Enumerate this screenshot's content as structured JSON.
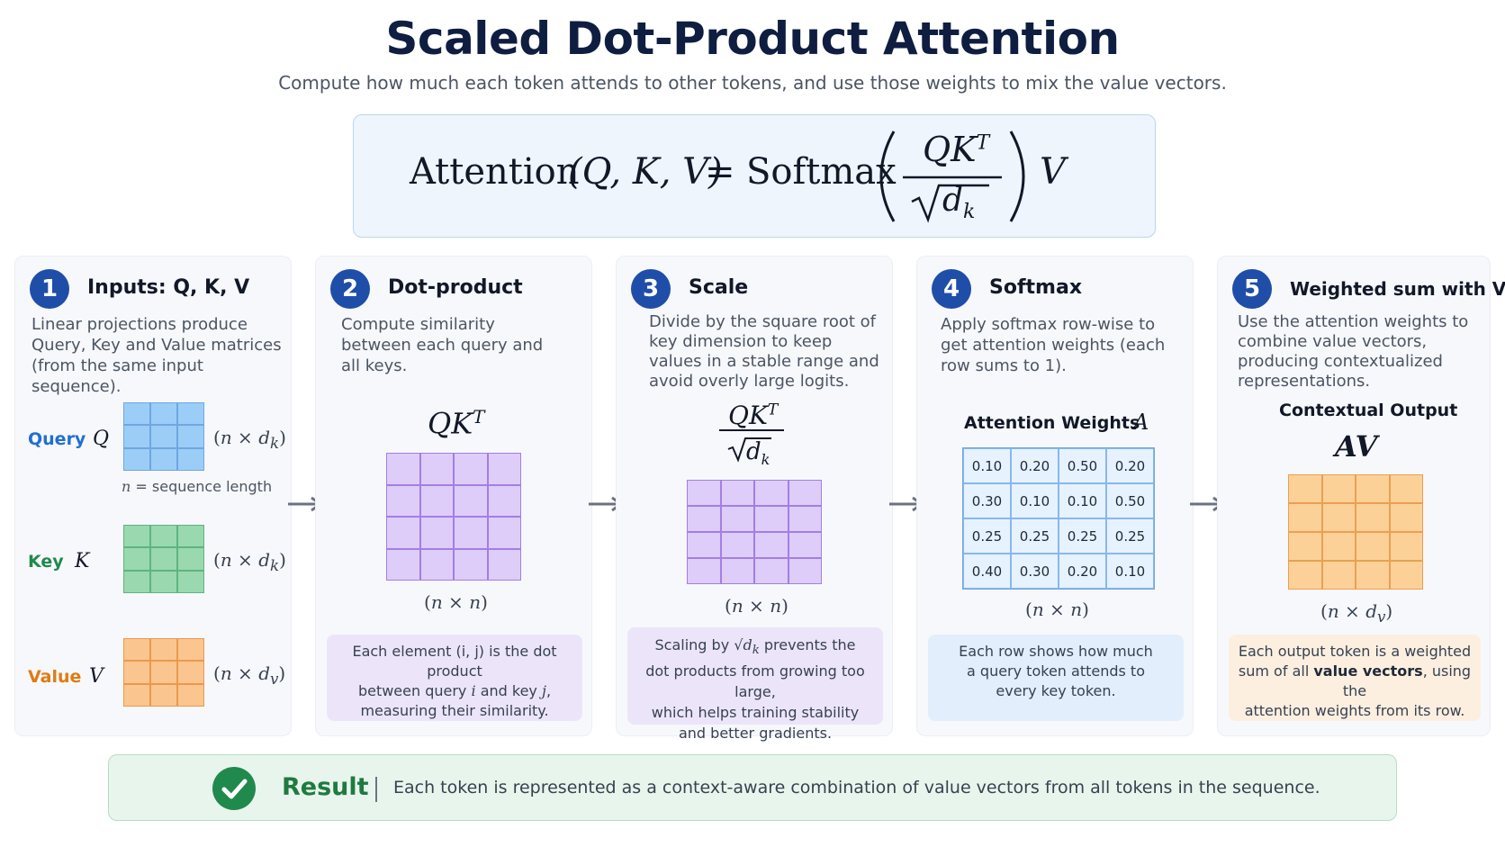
{
  "header": {
    "title": "Scaled Dot-Product Attention",
    "subtitle": "Compute how much each token attends to other tokens, and use those weights to mix the value vectors."
  },
  "formula": {
    "lhs": "Attention",
    "args": "(Q, K, V)",
    "equals": "=",
    "softmax": "Softmax",
    "numerator": "QK",
    "numerator_sup": "T",
    "denominator": "d",
    "denominator_sub": "k",
    "trailing": "V"
  },
  "steps": [
    {
      "number": "1",
      "title": "Inputs: Q,  K,  V",
      "description": "Linear projections produce Query, Key and Value matrices (from the same input sequence).",
      "matrices": [
        {
          "label": "Query",
          "symbol": "Q",
          "dim": "(n × d",
          "dim_sub": "k",
          "dim_end": ")",
          "color": "#1f6fd1"
        },
        {
          "label": "Key",
          "symbol": "K",
          "dim": "(n × d",
          "dim_sub": "k",
          "dim_end": ")",
          "color": "#1f8a4c"
        },
        {
          "label": "Value",
          "symbol": "V",
          "dim": "(n × d",
          "dim_sub": "v",
          "dim_end": ")",
          "color": "#e07b12"
        }
      ],
      "note_var": "n",
      "note": " = sequence length"
    },
    {
      "number": "2",
      "title": "Dot-product",
      "description": "Compute similarity between each query and all keys.",
      "math": "QK",
      "math_sup": "T",
      "dim": "(n × n)",
      "footnote_1": "Each element (i, j) is the dot product",
      "footnote_2a": "between query ",
      "footnote_var_i": "i",
      "footnote_2b": " and key ",
      "footnote_var_j": "j",
      "footnote_2c": ",",
      "footnote_3": "measuring their similarity."
    },
    {
      "number": "3",
      "title": "Scale",
      "description": "Divide by the square root of key dimension to keep values in a stable range and avoid overly large logits.",
      "math_num": "QK",
      "math_sup": "T",
      "math_den": "d",
      "math_den_sub": "k",
      "dim": "(n × n)",
      "footnote_1a": "Scaling by ",
      "footnote_1b": " prevents the",
      "footnote_2": "dot products from growing too large,",
      "footnote_3": "which helps training stability",
      "footnote_4": "and better gradients."
    },
    {
      "number": "4",
      "title": "Softmax",
      "description": "Apply softmax row-wise to get attention weights (each row sums to 1).",
      "table_title": "Attention Weights",
      "table_symbol": "A",
      "weights": [
        [
          "0.10",
          "0.20",
          "0.50",
          "0.20"
        ],
        [
          "0.30",
          "0.10",
          "0.10",
          "0.50"
        ],
        [
          "0.25",
          "0.25",
          "0.25",
          "0.25"
        ],
        [
          "0.40",
          "0.30",
          "0.20",
          "0.10"
        ]
      ],
      "dim": "(n × n)",
      "footnote_1": "Each row shows how much",
      "footnote_2": "a query token attends to",
      "footnote_3": "every key token."
    },
    {
      "number": "5",
      "title": "Weighted sum with  V",
      "description": "Use the attention weights to combine value vectors, producing contextualized representations.",
      "output_title": "Contextual Output",
      "math": "AV",
      "dim": "(n × d",
      "dim_sub": "v",
      "dim_end": ")",
      "footnote_1": "Each output token is a weighted",
      "footnote_2a": "sum of all ",
      "footnote_2b": "value vectors",
      "footnote_2c": ", using the",
      "footnote_3": "attention weights from its row."
    }
  ],
  "result": {
    "label": "Result",
    "text": "Each token is represented as a context-aware combination of value vectors from all tokens in the sequence."
  },
  "colors": {
    "step_badge": "#1f4ea9",
    "query": "#1f6fd1",
    "key": "#1f8a4c",
    "value": "#e07b12",
    "result": "#1f7a3f"
  }
}
